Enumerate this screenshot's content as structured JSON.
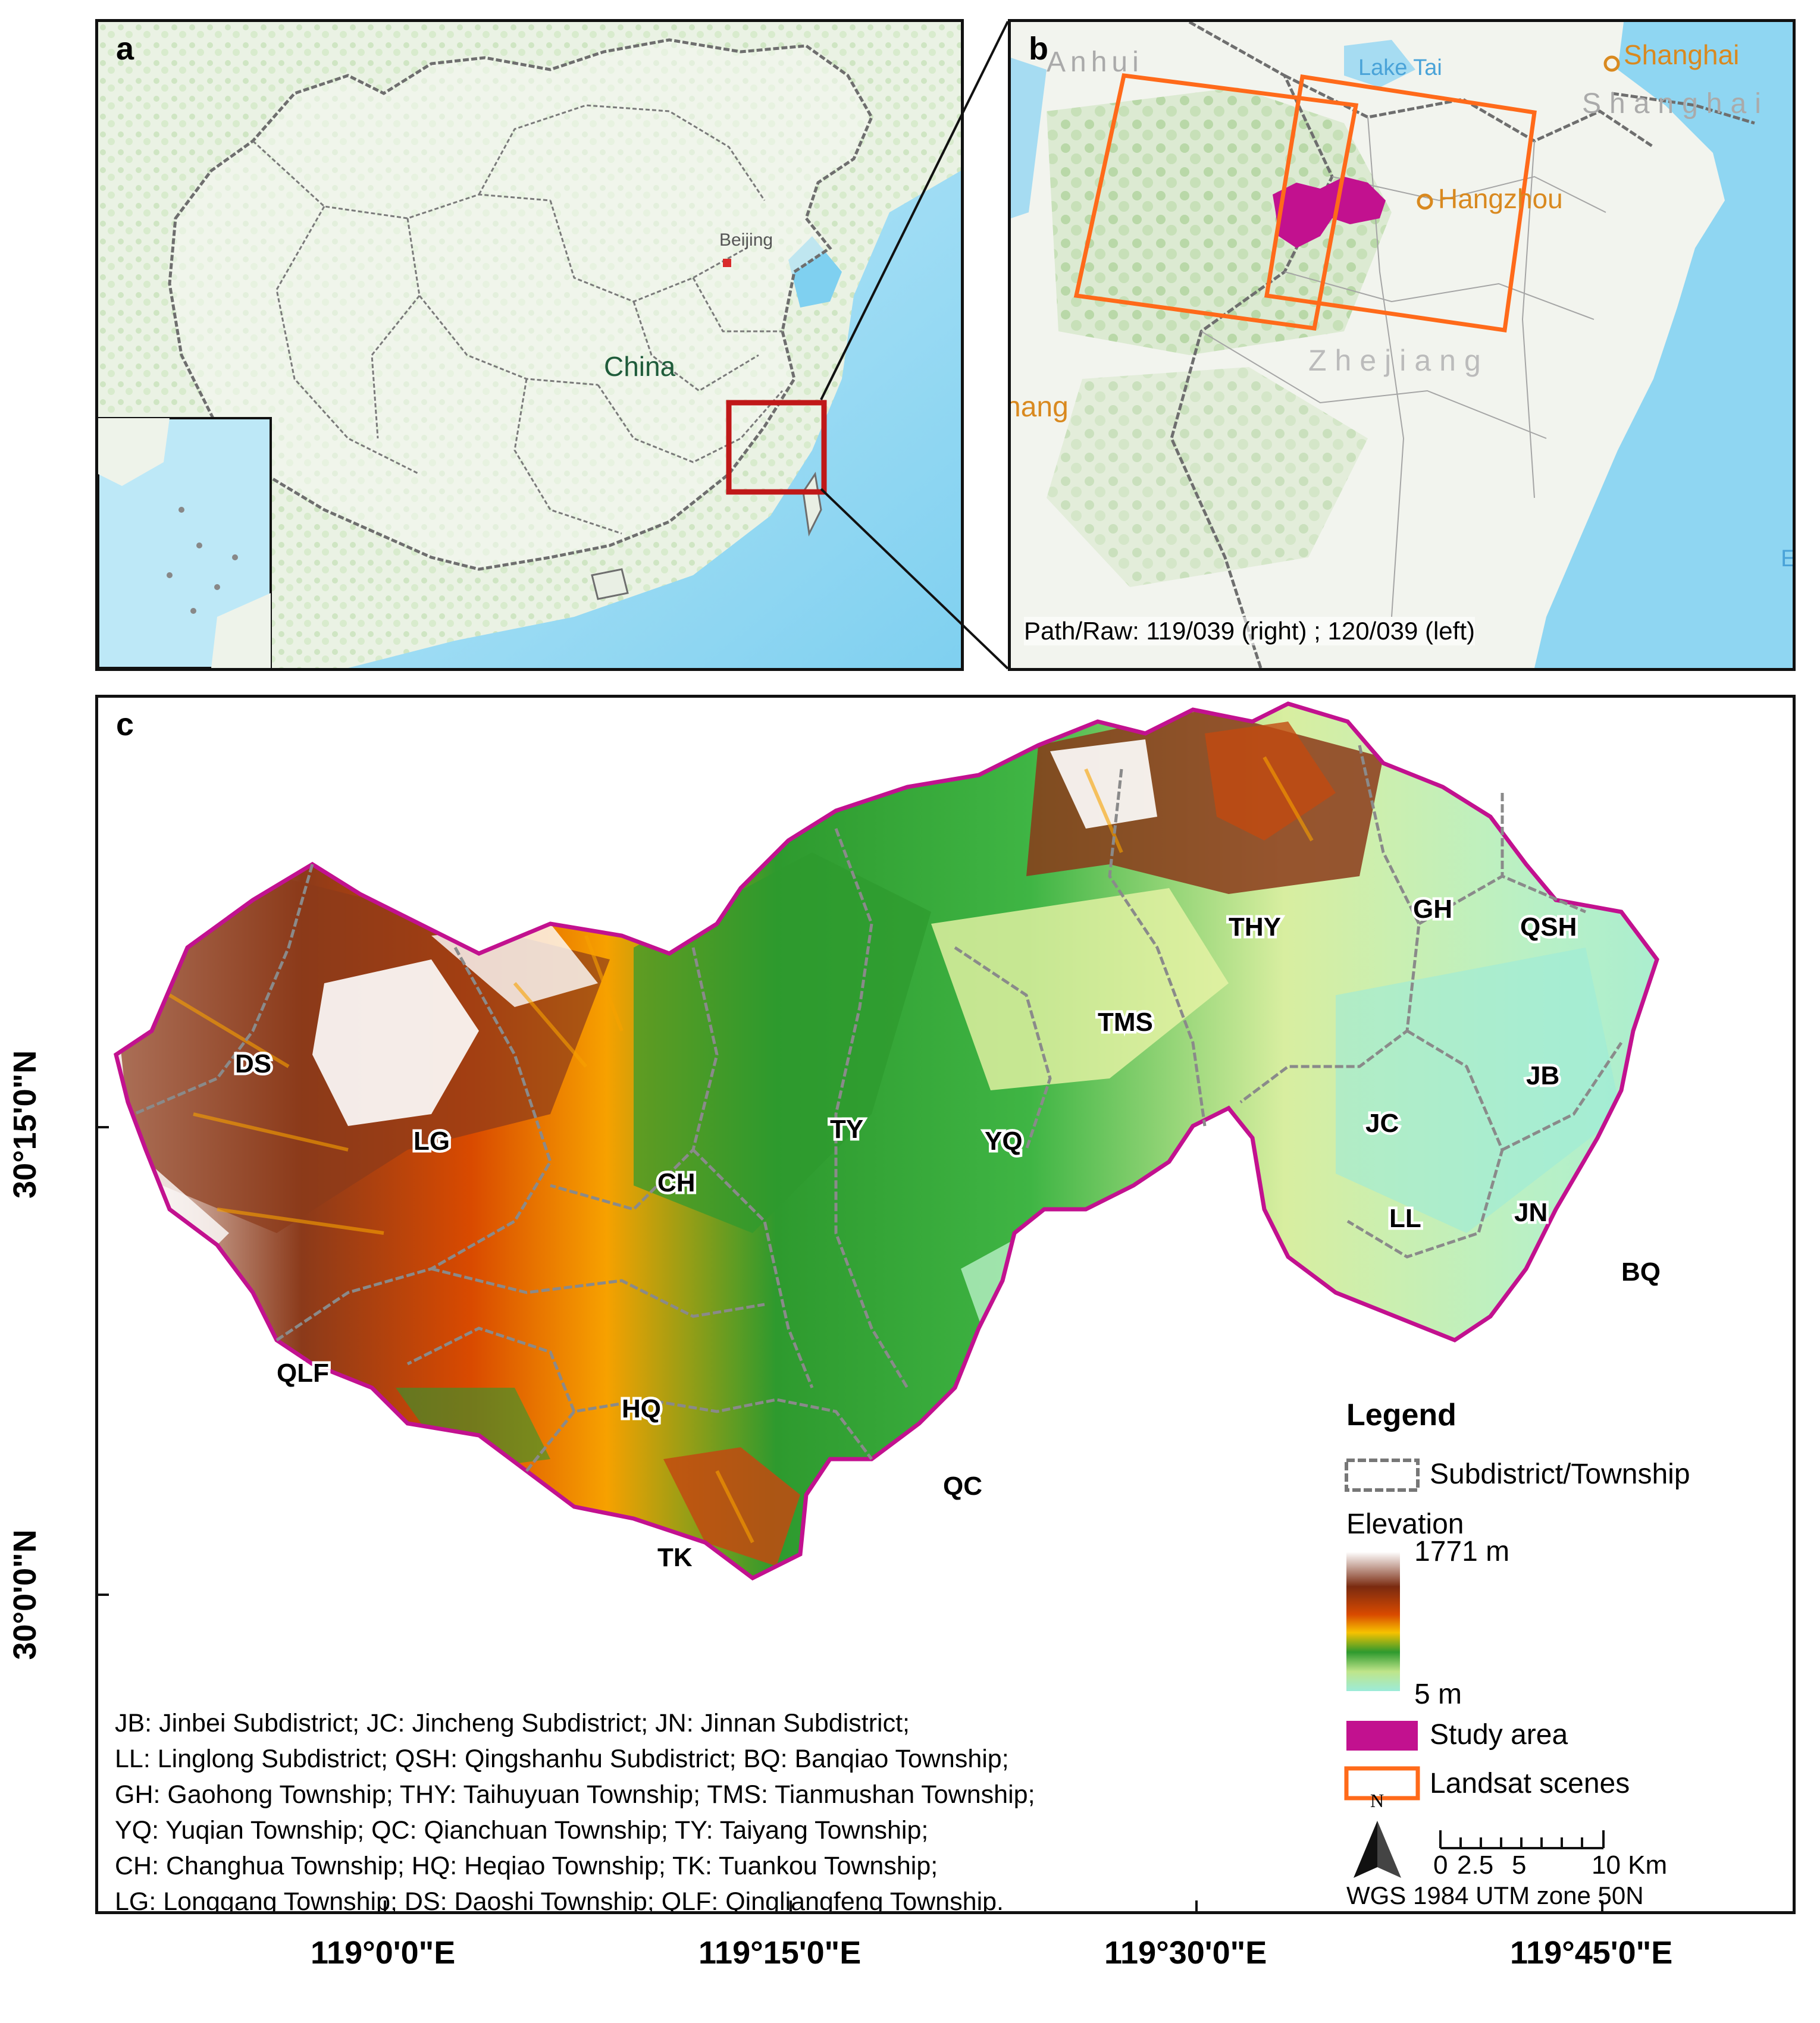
{
  "panels": {
    "a": {
      "letter": "a",
      "country_label": "China",
      "city_label": "Beijing"
    },
    "b": {
      "letter": "b",
      "labels": {
        "anhui": "Anhui",
        "lake": "Lake Tai",
        "shanghai_city": "Shanghai",
        "shanghai_region": "Shanghai",
        "hangzhou": "Hangzhou",
        "zhejiang": "Zhejiang",
        "jiangxi_partial": "hang",
        "edge_letter": "E"
      },
      "path_row": "Path/Raw: 119/039 (right) ; 120/039 (left)"
    },
    "c": {
      "letter": "c",
      "townships": [
        "THY",
        "GH",
        "QSH",
        "TMS",
        "DS",
        "LG",
        "CH",
        "TY",
        "YQ",
        "JB",
        "JC",
        "LL",
        "JN",
        "BQ",
        "QLF",
        "HQ",
        "QC",
        "TK"
      ],
      "legend": {
        "title": "Legend",
        "boundary_label": "Subdistrict/Township",
        "elevation_label": "Elevation",
        "elevation_max": "1771 m",
        "elevation_min": "5 m",
        "study_area": "Study area",
        "landsat": "Landsat scenes"
      },
      "north_label": "N",
      "scale": {
        "ticks": [
          "0",
          "2.5",
          "5",
          "10 Km"
        ]
      },
      "projection": "WGS 1984 UTM zone 50N",
      "abbreviations": [
        "JB: Jinbei Subdistrict; JC: Jincheng Subdistrict; JN: Jinnan Subdistrict;",
        "LL: Linglong Subdistrict; QSH: Qingshanhu Subdistrict; BQ: Banqiao Township;",
        "GH: Gaohong Township; THY: Taihuyuan Township; TMS: Tianmushan Township;",
        "YQ: Yuqian Township; QC: Qianchuan Township; TY: Taiyang Township;",
        "CH: Changhua Township; HQ: Heqiao Township; TK: Tuankou Township;",
        "LG: Longgang Township; DS: Daoshi Township; QLF: Qingliangfeng Township."
      ],
      "lat_labels": [
        "30°15'0\"N",
        "30°0'0\"N"
      ],
      "lon_labels": [
        "119°0'0\"E",
        "119°15'0\"E",
        "119°30'0\"E",
        "119°45'0\"E"
      ]
    }
  },
  "colors": {
    "study_area": "#c2118f",
    "landsat": "#ff6a1a",
    "boundary": "#8a8a8a",
    "sea": "#7fd0f0",
    "locator": "#c01818",
    "city": "#d9891f"
  }
}
